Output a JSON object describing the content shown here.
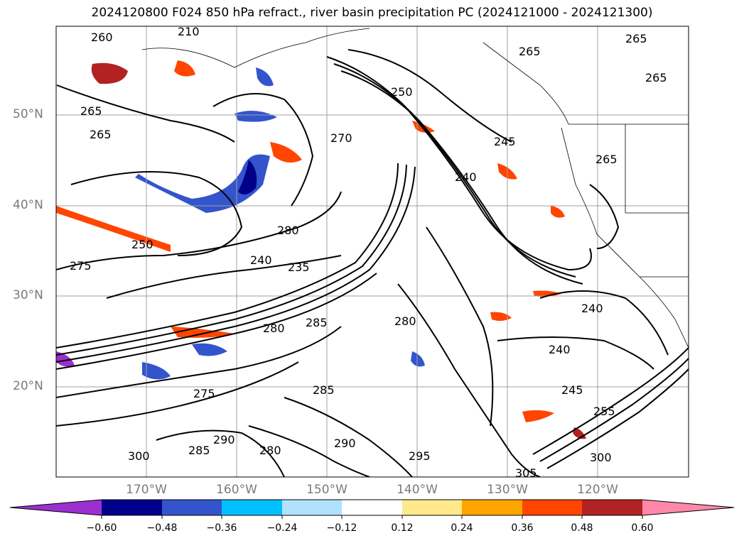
{
  "title": "2024120800 F024 850 hPa refract., river basin precipitation PC (2024121000 - 2024121300)",
  "map": {
    "lat_labels": [
      "50°N",
      "40°N",
      "30°N",
      "20°N"
    ],
    "lon_labels": [
      "170°W",
      "160°W",
      "150°W",
      "140°W",
      "130°W",
      "120°W"
    ],
    "contour_labels": [
      "260",
      "265",
      "265",
      "265",
      "250",
      "275",
      "240",
      "235",
      "280",
      "285",
      "280",
      "285",
      "280",
      "290",
      "295",
      "300",
      "305",
      "255",
      "245",
      "240",
      "240",
      "245",
      "250",
      "265",
      "270",
      "275",
      "290",
      "285",
      "265",
      "265",
      "300",
      "210",
      "240",
      "280"
    ]
  },
  "colorbar": {
    "ticks": [
      "−0.60",
      "−0.48",
      "−0.36",
      "−0.24",
      "−0.12",
      "0.12",
      "0.24",
      "0.36",
      "0.48",
      "0.60"
    ],
    "colors": [
      "#9b30d0",
      "#00008b",
      "#3355cc",
      "#00bfff",
      "#b0e2ff",
      "#ffffff",
      "#ffe98a",
      "#ffa500",
      "#ff4500",
      "#b22222",
      "#ff88aa"
    ]
  }
}
